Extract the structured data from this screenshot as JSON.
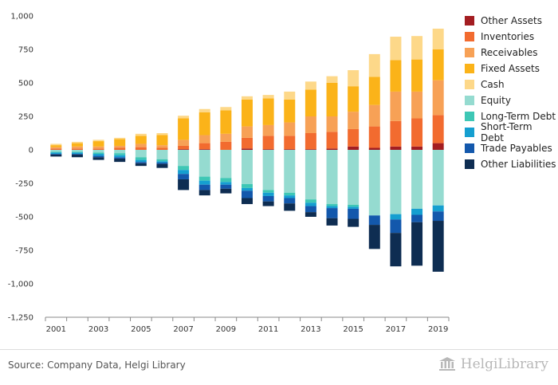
{
  "chart_data": {
    "type": "bar",
    "stacked": true,
    "categories": [
      "2001",
      "2002",
      "2003",
      "2004",
      "2005",
      "2006",
      "2007",
      "2008",
      "2009",
      "2010",
      "2011",
      "2012",
      "2013",
      "2014",
      "2015",
      "2016",
      "2017",
      "2018",
      "2019"
    ],
    "x_tick_labels": [
      "2001",
      "2003",
      "2005",
      "2007",
      "2009",
      "2011",
      "2013",
      "2015",
      "2017",
      "2019"
    ],
    "ylim": [
      -1250,
      1000
    ],
    "yticks": [
      1000,
      750,
      500,
      250,
      0,
      -250,
      -500,
      -750,
      -1000,
      -1250
    ],
    "ytick_labels": [
      "1,000",
      "750",
      "500",
      "250",
      "0",
      "-250",
      "-500",
      "-750",
      "-1,000",
      "-1,250"
    ],
    "grid": false,
    "legend_position": "right",
    "series": [
      {
        "name": "Other Assets",
        "color": "#a31d21",
        "values": [
          0,
          0,
          0,
          0,
          0,
          0,
          5,
          5,
          0,
          10,
          5,
          5,
          5,
          10,
          25,
          15,
          25,
          25,
          50
        ]
      },
      {
        "name": "Inventories",
        "color": "#f26b2f",
        "values": [
          10,
          10,
          10,
          15,
          20,
          15,
          25,
          45,
          60,
          80,
          100,
          100,
          120,
          125,
          130,
          160,
          190,
          210,
          210
        ]
      },
      {
        "name": "Receivables",
        "color": "#f7a156",
        "values": [
          10,
          15,
          15,
          15,
          25,
          20,
          45,
          60,
          60,
          85,
          80,
          100,
          125,
          115,
          130,
          160,
          220,
          200,
          260
        ]
      },
      {
        "name": "Fixed Assets",
        "color": "#fbb319",
        "values": [
          15,
          25,
          40,
          50,
          60,
          75,
          160,
          170,
          175,
          200,
          200,
          170,
          200,
          250,
          190,
          210,
          235,
          240,
          230
        ]
      },
      {
        "name": "Cash",
        "color": "#fdd889",
        "values": [
          10,
          10,
          10,
          10,
          15,
          15,
          20,
          25,
          25,
          25,
          25,
          60,
          60,
          50,
          120,
          170,
          175,
          175,
          155
        ]
      },
      {
        "name": "Equity",
        "color": "#95dbd0",
        "values": [
          -15,
          -15,
          -20,
          -25,
          -55,
          -70,
          -120,
          -200,
          -210,
          -255,
          -300,
          -320,
          -370,
          -405,
          -410,
          -490,
          -480,
          -440,
          -415
        ]
      },
      {
        "name": "Long-Term Debt",
        "color": "#3ec7b5",
        "values": [
          -5,
          -5,
          -10,
          -15,
          -20,
          -15,
          -30,
          -30,
          -30,
          -30,
          -20,
          -20,
          -25,
          -15,
          -15,
          0,
          0,
          0,
          0
        ]
      },
      {
        "name": "Short-Term Debt",
        "color": "#159fd0",
        "values": [
          -10,
          -10,
          -15,
          -15,
          -15,
          -10,
          -30,
          -30,
          -20,
          -20,
          -25,
          -20,
          -25,
          -15,
          -15,
          0,
          -40,
          -45,
          -45
        ]
      },
      {
        "name": "Trade Payables",
        "color": "#1358ac",
        "values": [
          -5,
          -5,
          -10,
          -10,
          -10,
          -10,
          -40,
          -40,
          -30,
          -55,
          -40,
          -40,
          -45,
          -75,
          -75,
          -70,
          -100,
          -55,
          -70
        ]
      },
      {
        "name": "Other Liabilities",
        "color": "#0e2d52",
        "values": [
          -15,
          -20,
          -20,
          -25,
          -20,
          -30,
          -80,
          -40,
          -35,
          -45,
          -35,
          -55,
          -35,
          -55,
          -60,
          -180,
          -250,
          -325,
          -380
        ]
      }
    ]
  },
  "footer": {
    "source": "Source: Company Data, Helgi Library",
    "brand_name": "HelgiLibrary",
    "brand_color": "#b8b8b8"
  }
}
